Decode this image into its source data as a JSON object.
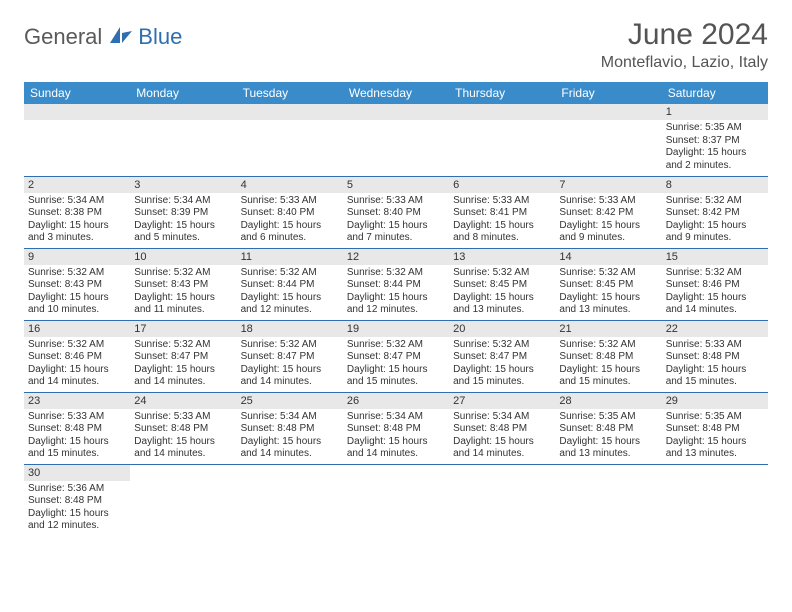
{
  "logo": {
    "text1": "General",
    "text2": "Blue"
  },
  "title": "June 2024",
  "location": "Monteflavio, Lazio, Italy",
  "colors": {
    "header_bg": "#3a8bc9",
    "header_text": "#ffffff",
    "rule": "#2f6fb0",
    "daynum_bg": "#e8e8e8",
    "text": "#333333",
    "title_text": "#545454"
  },
  "weekdays": [
    "Sunday",
    "Monday",
    "Tuesday",
    "Wednesday",
    "Thursday",
    "Friday",
    "Saturday"
  ],
  "weeks": [
    [
      null,
      null,
      null,
      null,
      null,
      null,
      {
        "n": "1",
        "sunrise": "5:35 AM",
        "sunset": "8:37 PM",
        "daylight": "15 hours and 2 minutes."
      }
    ],
    [
      {
        "n": "2",
        "sunrise": "5:34 AM",
        "sunset": "8:38 PM",
        "daylight": "15 hours and 3 minutes."
      },
      {
        "n": "3",
        "sunrise": "5:34 AM",
        "sunset": "8:39 PM",
        "daylight": "15 hours and 5 minutes."
      },
      {
        "n": "4",
        "sunrise": "5:33 AM",
        "sunset": "8:40 PM",
        "daylight": "15 hours and 6 minutes."
      },
      {
        "n": "5",
        "sunrise": "5:33 AM",
        "sunset": "8:40 PM",
        "daylight": "15 hours and 7 minutes."
      },
      {
        "n": "6",
        "sunrise": "5:33 AM",
        "sunset": "8:41 PM",
        "daylight": "15 hours and 8 minutes."
      },
      {
        "n": "7",
        "sunrise": "5:33 AM",
        "sunset": "8:42 PM",
        "daylight": "15 hours and 9 minutes."
      },
      {
        "n": "8",
        "sunrise": "5:32 AM",
        "sunset": "8:42 PM",
        "daylight": "15 hours and 9 minutes."
      }
    ],
    [
      {
        "n": "9",
        "sunrise": "5:32 AM",
        "sunset": "8:43 PM",
        "daylight": "15 hours and 10 minutes."
      },
      {
        "n": "10",
        "sunrise": "5:32 AM",
        "sunset": "8:43 PM",
        "daylight": "15 hours and 11 minutes."
      },
      {
        "n": "11",
        "sunrise": "5:32 AM",
        "sunset": "8:44 PM",
        "daylight": "15 hours and 12 minutes."
      },
      {
        "n": "12",
        "sunrise": "5:32 AM",
        "sunset": "8:44 PM",
        "daylight": "15 hours and 12 minutes."
      },
      {
        "n": "13",
        "sunrise": "5:32 AM",
        "sunset": "8:45 PM",
        "daylight": "15 hours and 13 minutes."
      },
      {
        "n": "14",
        "sunrise": "5:32 AM",
        "sunset": "8:45 PM",
        "daylight": "15 hours and 13 minutes."
      },
      {
        "n": "15",
        "sunrise": "5:32 AM",
        "sunset": "8:46 PM",
        "daylight": "15 hours and 14 minutes."
      }
    ],
    [
      {
        "n": "16",
        "sunrise": "5:32 AM",
        "sunset": "8:46 PM",
        "daylight": "15 hours and 14 minutes."
      },
      {
        "n": "17",
        "sunrise": "5:32 AM",
        "sunset": "8:47 PM",
        "daylight": "15 hours and 14 minutes."
      },
      {
        "n": "18",
        "sunrise": "5:32 AM",
        "sunset": "8:47 PM",
        "daylight": "15 hours and 14 minutes."
      },
      {
        "n": "19",
        "sunrise": "5:32 AM",
        "sunset": "8:47 PM",
        "daylight": "15 hours and 15 minutes."
      },
      {
        "n": "20",
        "sunrise": "5:32 AM",
        "sunset": "8:47 PM",
        "daylight": "15 hours and 15 minutes."
      },
      {
        "n": "21",
        "sunrise": "5:32 AM",
        "sunset": "8:48 PM",
        "daylight": "15 hours and 15 minutes."
      },
      {
        "n": "22",
        "sunrise": "5:33 AM",
        "sunset": "8:48 PM",
        "daylight": "15 hours and 15 minutes."
      }
    ],
    [
      {
        "n": "23",
        "sunrise": "5:33 AM",
        "sunset": "8:48 PM",
        "daylight": "15 hours and 15 minutes."
      },
      {
        "n": "24",
        "sunrise": "5:33 AM",
        "sunset": "8:48 PM",
        "daylight": "15 hours and 14 minutes."
      },
      {
        "n": "25",
        "sunrise": "5:34 AM",
        "sunset": "8:48 PM",
        "daylight": "15 hours and 14 minutes."
      },
      {
        "n": "26",
        "sunrise": "5:34 AM",
        "sunset": "8:48 PM",
        "daylight": "15 hours and 14 minutes."
      },
      {
        "n": "27",
        "sunrise": "5:34 AM",
        "sunset": "8:48 PM",
        "daylight": "15 hours and 14 minutes."
      },
      {
        "n": "28",
        "sunrise": "5:35 AM",
        "sunset": "8:48 PM",
        "daylight": "15 hours and 13 minutes."
      },
      {
        "n": "29",
        "sunrise": "5:35 AM",
        "sunset": "8:48 PM",
        "daylight": "15 hours and 13 minutes."
      }
    ],
    [
      {
        "n": "30",
        "sunrise": "5:36 AM",
        "sunset": "8:48 PM",
        "daylight": "15 hours and 12 minutes."
      },
      null,
      null,
      null,
      null,
      null,
      null
    ]
  ],
  "labels": {
    "sunrise": "Sunrise:",
    "sunset": "Sunset:",
    "daylight": "Daylight:"
  }
}
